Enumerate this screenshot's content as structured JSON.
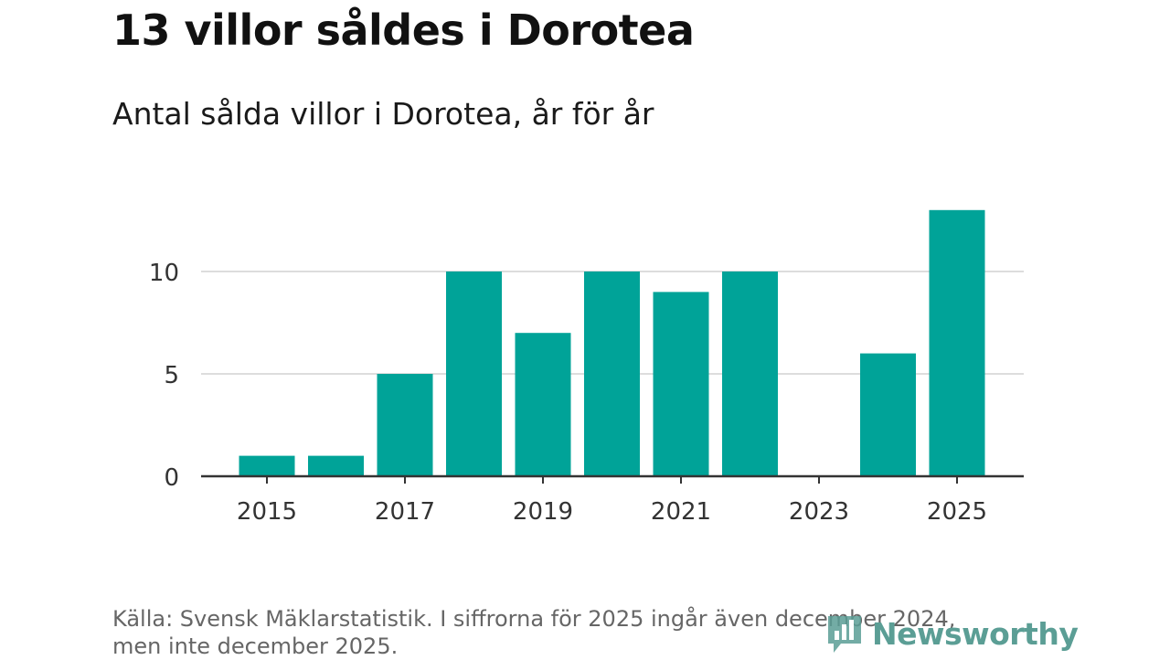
{
  "title": "13 villor såldes i Dorotea",
  "subtitle": "Antal sålda villor i Dorotea, år för år",
  "source": {
    "line1": "Källa: Svensk Mäklarstatistik. I siffrorna för 2025 ingår även december 2024,",
    "line2": "men inte december 2025."
  },
  "brand": {
    "name": "Newsworthy",
    "icon": "bar-chart-logo-icon"
  },
  "colors": {
    "bar": "#00a398",
    "grid": "#dddddd",
    "axis": "#333333",
    "text": "#333333",
    "brand": "#5b9e95"
  },
  "chart_data": {
    "type": "bar",
    "categories": [
      "2015",
      "2016",
      "2017",
      "2018",
      "2019",
      "2020",
      "2021",
      "2022",
      "2023",
      "2024",
      "2025"
    ],
    "values": [
      1,
      1,
      5,
      10,
      7,
      10,
      9,
      10,
      0,
      6,
      13
    ],
    "x_tick_labels": [
      "2015",
      "2017",
      "2019",
      "2021",
      "2023",
      "2025"
    ],
    "y_ticks": [
      0,
      5,
      10
    ],
    "ylim": [
      0,
      13
    ],
    "xlabel": "",
    "ylabel": "",
    "grid": true
  }
}
